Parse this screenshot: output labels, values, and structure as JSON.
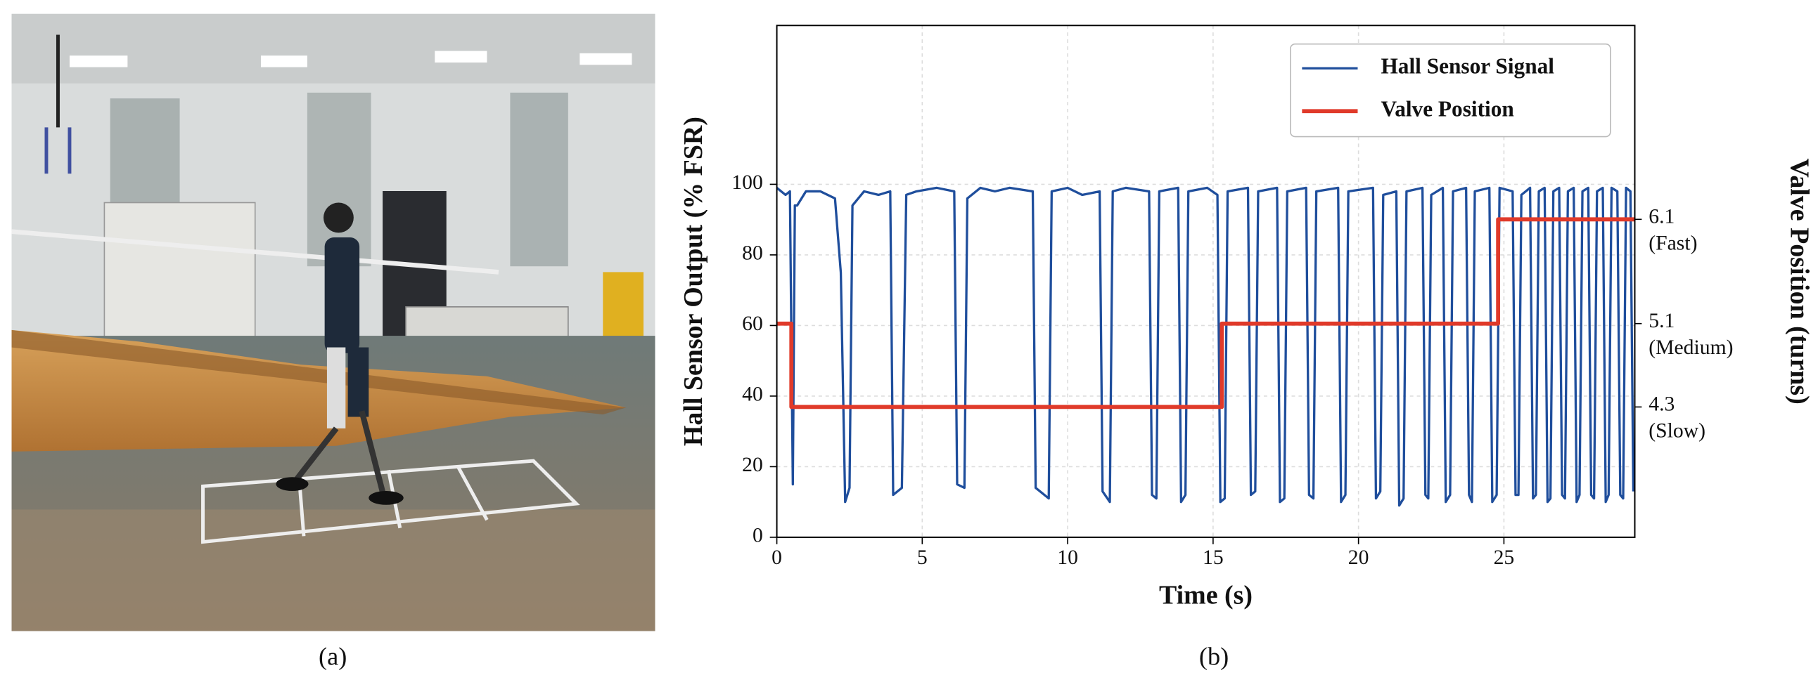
{
  "panels": [
    {
      "caption": "(a)"
    },
    {
      "caption": "(b)"
    }
  ],
  "chart_data": {
    "type": "line",
    "xlabel": "Time (s)",
    "ylabel": "Hall Sensor Output (% FSR)",
    "y2label": "Valve Position (turns)",
    "xlim": [
      0,
      29.5
    ],
    "xticks": [
      0,
      5,
      10,
      15,
      20,
      25
    ],
    "ylim": [
      0,
      145
    ],
    "yticks": [
      0,
      20,
      40,
      60,
      80,
      100
    ],
    "y2lim": [
      3.05,
      7.96
    ],
    "y2ticks": [
      6.1,
      5.1,
      4.3
    ],
    "y2tick_notes": [
      "(Fast)",
      "(Medium)",
      "(Slow)"
    ],
    "grid": true,
    "legend": "upper right",
    "series": [
      {
        "name": "Hall Sensor Signal",
        "color": "#1f4e9c",
        "x": [
          0,
          0.3,
          0.45,
          0.55,
          0.62,
          0.7,
          1.0,
          1.5,
          2.0,
          2.2,
          2.35,
          2.5,
          2.6,
          3.0,
          3.5,
          3.9,
          4.0,
          4.3,
          4.45,
          4.8,
          5.5,
          6.1,
          6.2,
          6.45,
          6.55,
          7.0,
          7.5,
          8.0,
          8.8,
          8.9,
          9.35,
          9.45,
          10.0,
          10.5,
          11.1,
          11.2,
          11.45,
          11.55,
          12.0,
          12.8,
          12.9,
          13.05,
          13.15,
          13.8,
          13.9,
          14.05,
          14.15,
          14.8,
          15.15,
          15.25,
          15.4,
          15.5,
          16.2,
          16.3,
          16.45,
          16.55,
          17.2,
          17.3,
          17.45,
          17.55,
          18.2,
          18.3,
          18.45,
          18.55,
          19.3,
          19.4,
          19.55,
          19.65,
          20.5,
          20.6,
          20.75,
          20.85,
          21.3,
          21.4,
          21.55,
          21.65,
          22.2,
          22.3,
          22.4,
          22.5,
          22.9,
          23.0,
          23.15,
          23.25,
          23.7,
          23.8,
          23.9,
          24.0,
          24.5,
          24.6,
          24.75,
          24.85,
          25.3,
          25.4,
          25.5,
          25.6,
          25.9,
          26.0,
          26.1,
          26.2,
          26.4,
          26.5,
          26.6,
          26.7,
          26.9,
          27.0,
          27.1,
          27.2,
          27.4,
          27.5,
          27.6,
          27.7,
          27.9,
          28.0,
          28.1,
          28.2,
          28.4,
          28.5,
          28.6,
          28.7,
          28.9,
          29.0,
          29.1,
          29.2,
          29.35,
          29.45
        ],
        "values": [
          99,
          97,
          98,
          15,
          94,
          94,
          98,
          98,
          96,
          75,
          10,
          14,
          94,
          98,
          97,
          98,
          12,
          14,
          97,
          98,
          99,
          98,
          15,
          14,
          96,
          99,
          98,
          99,
          98,
          14,
          11,
          98,
          99,
          97,
          98,
          13,
          10,
          98,
          99,
          98,
          12,
          11,
          98,
          99,
          10,
          12,
          98,
          99,
          97,
          10,
          11,
          98,
          99,
          12,
          13,
          98,
          99,
          10,
          11,
          98,
          99,
          12,
          11,
          98,
          99,
          10,
          12,
          98,
          99,
          11,
          13,
          97,
          98,
          9,
          11,
          98,
          99,
          12,
          11,
          97,
          99,
          10,
          12,
          98,
          99,
          12,
          10,
          98,
          99,
          10,
          12,
          99,
          98,
          12,
          12,
          97,
          99,
          11,
          12,
          98,
          99,
          10,
          11,
          98,
          99,
          12,
          11,
          98,
          99,
          10,
          12,
          98,
          99,
          12,
          11,
          98,
          99,
          10,
          12,
          99,
          98,
          12,
          11,
          99,
          98,
          13
        ]
      },
      {
        "name": "Valve Position",
        "color": "#e03a2a",
        "axis": "y2",
        "x": [
          0,
          0.5,
          0.5,
          15.3,
          15.3,
          24.8,
          24.8,
          29.5
        ],
        "values": [
          5.1,
          5.1,
          4.3,
          4.3,
          5.1,
          5.1,
          6.1,
          6.1
        ]
      }
    ]
  }
}
